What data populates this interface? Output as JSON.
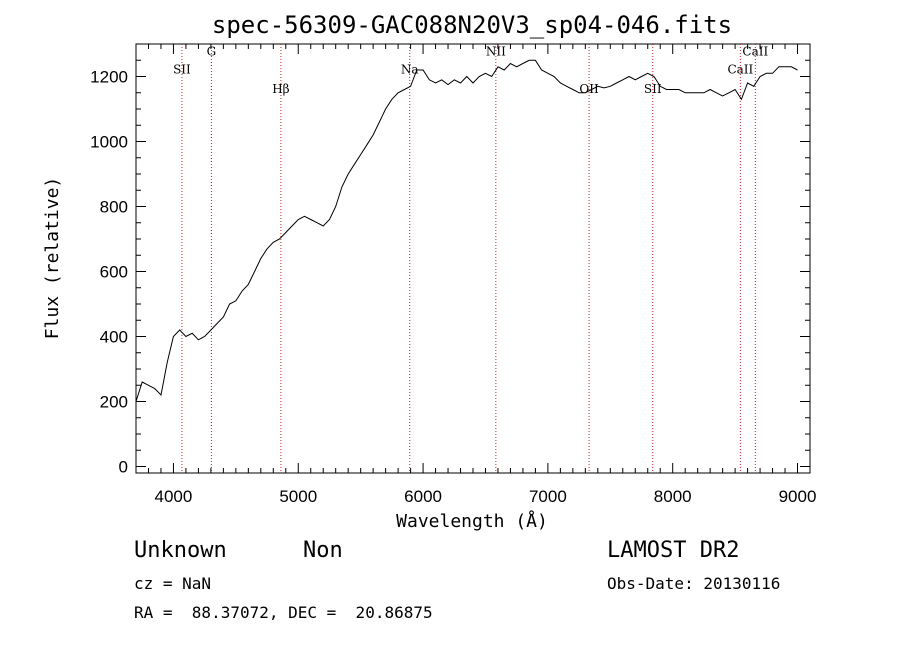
{
  "chart_data": {
    "type": "line",
    "title": "spec-56309-GAC088N20V3_sp04-046.fits",
    "xlabel": "Wavelength (Å)",
    "ylabel": "Flux (relative)",
    "xlim": [
      3700,
      9100
    ],
    "ylim": [
      -20,
      1300
    ],
    "x_ticks": [
      4000,
      5000,
      6000,
      7000,
      8000,
      9000
    ],
    "y_ticks": [
      0,
      200,
      400,
      600,
      800,
      1000,
      1200
    ],
    "grid": false,
    "line_color": "#000000",
    "marker_line_color": "#cc2222",
    "spectral_lines": [
      {
        "label": "SII",
        "x": 4068,
        "label_y": 1210
      },
      {
        "label": "G",
        "x": 4304,
        "label_y": 1265
      },
      {
        "label": "Hβ",
        "x": 4861,
        "label_y": 1150
      },
      {
        "label": "Na",
        "x": 5893,
        "label_y": 1210
      },
      {
        "label": "NII",
        "x": 6583,
        "label_y": 1265
      },
      {
        "label": "OII",
        "x": 7330,
        "label_y": 1150
      },
      {
        "label": "SII",
        "x": 7840,
        "label_y": 1150
      },
      {
        "label": "CaII",
        "x": 8542,
        "label_y": 1210
      },
      {
        "label": "CaII",
        "x": 8662,
        "label_y": 1265
      }
    ],
    "series": [
      {
        "values": [
          [
            3700,
            200
          ],
          [
            3750,
            260
          ],
          [
            3800,
            250
          ],
          [
            3850,
            240
          ],
          [
            3900,
            220
          ],
          [
            3950,
            320
          ],
          [
            4000,
            400
          ],
          [
            4050,
            420
          ],
          [
            4100,
            400
          ],
          [
            4150,
            410
          ],
          [
            4200,
            390
          ],
          [
            4250,
            400
          ],
          [
            4300,
            420
          ],
          [
            4350,
            440
          ],
          [
            4400,
            460
          ],
          [
            4450,
            500
          ],
          [
            4500,
            510
          ],
          [
            4550,
            540
          ],
          [
            4600,
            560
          ],
          [
            4650,
            600
          ],
          [
            4700,
            640
          ],
          [
            4750,
            670
          ],
          [
            4800,
            690
          ],
          [
            4850,
            700
          ],
          [
            4900,
            720
          ],
          [
            4950,
            740
          ],
          [
            5000,
            760
          ],
          [
            5050,
            770
          ],
          [
            5100,
            760
          ],
          [
            5150,
            750
          ],
          [
            5200,
            740
          ],
          [
            5250,
            760
          ],
          [
            5300,
            800
          ],
          [
            5350,
            860
          ],
          [
            5400,
            900
          ],
          [
            5450,
            930
          ],
          [
            5500,
            960
          ],
          [
            5550,
            990
          ],
          [
            5600,
            1020
          ],
          [
            5650,
            1060
          ],
          [
            5700,
            1100
          ],
          [
            5750,
            1130
          ],
          [
            5800,
            1150
          ],
          [
            5850,
            1160
          ],
          [
            5900,
            1170
          ],
          [
            5950,
            1220
          ],
          [
            6000,
            1220
          ],
          [
            6050,
            1190
          ],
          [
            6100,
            1180
          ],
          [
            6150,
            1190
          ],
          [
            6200,
            1175
          ],
          [
            6250,
            1190
          ],
          [
            6300,
            1180
          ],
          [
            6350,
            1200
          ],
          [
            6400,
            1180
          ],
          [
            6450,
            1200
          ],
          [
            6500,
            1210
          ],
          [
            6550,
            1200
          ],
          [
            6600,
            1230
          ],
          [
            6650,
            1220
          ],
          [
            6700,
            1240
          ],
          [
            6750,
            1230
          ],
          [
            6800,
            1240
          ],
          [
            6850,
            1250
          ],
          [
            6900,
            1250
          ],
          [
            6950,
            1220
          ],
          [
            7000,
            1210
          ],
          [
            7050,
            1200
          ],
          [
            7100,
            1180
          ],
          [
            7150,
            1170
          ],
          [
            7200,
            1160
          ],
          [
            7250,
            1150
          ],
          [
            7300,
            1150
          ],
          [
            7350,
            1160
          ],
          [
            7400,
            1170
          ],
          [
            7450,
            1165
          ],
          [
            7500,
            1170
          ],
          [
            7550,
            1180
          ],
          [
            7600,
            1190
          ],
          [
            7650,
            1200
          ],
          [
            7700,
            1190
          ],
          [
            7750,
            1200
          ],
          [
            7800,
            1210
          ],
          [
            7850,
            1200
          ],
          [
            7900,
            1170
          ],
          [
            7950,
            1160
          ],
          [
            8000,
            1160
          ],
          [
            8050,
            1160
          ],
          [
            8100,
            1150
          ],
          [
            8150,
            1150
          ],
          [
            8200,
            1150
          ],
          [
            8250,
            1150
          ],
          [
            8300,
            1160
          ],
          [
            8350,
            1150
          ],
          [
            8400,
            1140
          ],
          [
            8450,
            1150
          ],
          [
            8500,
            1160
          ],
          [
            8550,
            1130
          ],
          [
            8600,
            1180
          ],
          [
            8650,
            1170
          ],
          [
            8700,
            1200
          ],
          [
            8750,
            1210
          ],
          [
            8800,
            1210
          ],
          [
            8850,
            1230
          ],
          [
            8900,
            1230
          ],
          [
            8950,
            1230
          ],
          [
            9000,
            1220
          ]
        ]
      }
    ]
  },
  "info": {
    "class": "Unknown",
    "subclass": "Non",
    "survey": "LAMOST DR2",
    "cz": "cz = NaN",
    "obs_date": "Obs-Date: 20130116",
    "coords": "RA =  88.37072, DEC =  20.86875"
  }
}
